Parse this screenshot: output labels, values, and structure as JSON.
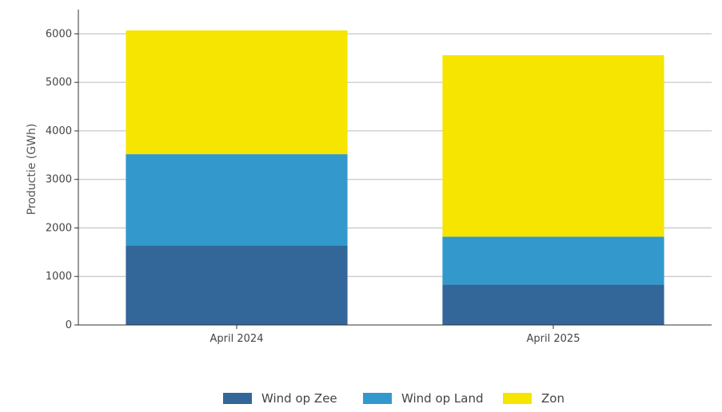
{
  "chart_data": {
    "type": "bar",
    "stacked": true,
    "title": "",
    "xlabel": "",
    "ylabel": "Productie (GWh)",
    "ylim": [
      0,
      6500
    ],
    "yticks": [
      0,
      1000,
      2000,
      3000,
      4000,
      5000,
      6000
    ],
    "categories": [
      "April 2024",
      "April 2025"
    ],
    "series": [
      {
        "name": "Wind op Zee",
        "color": "#336699",
        "values": [
          1640,
          830
        ]
      },
      {
        "name": "Wind op Land",
        "color": "#3399CC",
        "values": [
          1880,
          990
        ]
      },
      {
        "name": "Zon",
        "color": "#F5E500",
        "values": [
          2550,
          3740
        ]
      }
    ],
    "grid": true,
    "legend_position": "bottom"
  }
}
